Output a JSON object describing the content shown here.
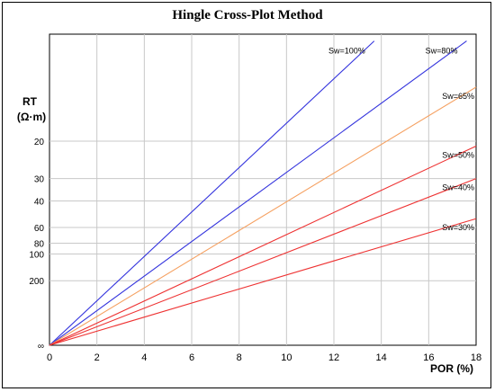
{
  "chart_data": {
    "type": "line",
    "title": "Hingle Cross-Plot Method",
    "xlabel": "POR (%)",
    "ylabel": "RT",
    "ylabel_unit": "(Ω·m)",
    "xlim": [
      0,
      18
    ],
    "x_ticks": [
      0,
      2,
      4,
      6,
      8,
      10,
      12,
      14,
      16,
      18
    ],
    "y_scale": "inverse-square-root",
    "y_ticks": [
      {
        "value": "20",
        "label": "20"
      },
      {
        "value": "30",
        "label": "30"
      },
      {
        "value": "40",
        "label": "40"
      },
      {
        "value": "60",
        "label": "60"
      },
      {
        "value": "80",
        "label": "80"
      },
      {
        "value": "100",
        "label": "100"
      },
      {
        "value": "200",
        "label": "200"
      },
      {
        "value": "inf",
        "label": "∞"
      }
    ],
    "grid": true,
    "series": [
      {
        "name": "Sw=100%",
        "color": "#3333dd",
        "points": [
          [
            0,
            "inf"
          ],
          [
            13.7,
            9.0
          ]
        ]
      },
      {
        "name": "Sw=80%",
        "color": "#3333dd",
        "points": [
          [
            0,
            "inf"
          ],
          [
            17.6,
            9.0
          ]
        ]
      },
      {
        "name": "Sw=65%",
        "color": "#f5a060",
        "points": [
          [
            0,
            "inf"
          ],
          [
            18,
            12.5
          ]
        ]
      },
      {
        "name": "Sw=50%",
        "color": "#ee3333",
        "points": [
          [
            0,
            "inf"
          ],
          [
            18,
            21
          ]
        ]
      },
      {
        "name": "Sw=40%",
        "color": "#ee3333",
        "points": [
          [
            0,
            "inf"
          ],
          [
            18,
            30
          ]
        ]
      },
      {
        "name": "Sw=30%",
        "color": "#ee3333",
        "points": [
          [
            0,
            "inf"
          ],
          [
            18,
            52
          ]
        ]
      }
    ]
  }
}
